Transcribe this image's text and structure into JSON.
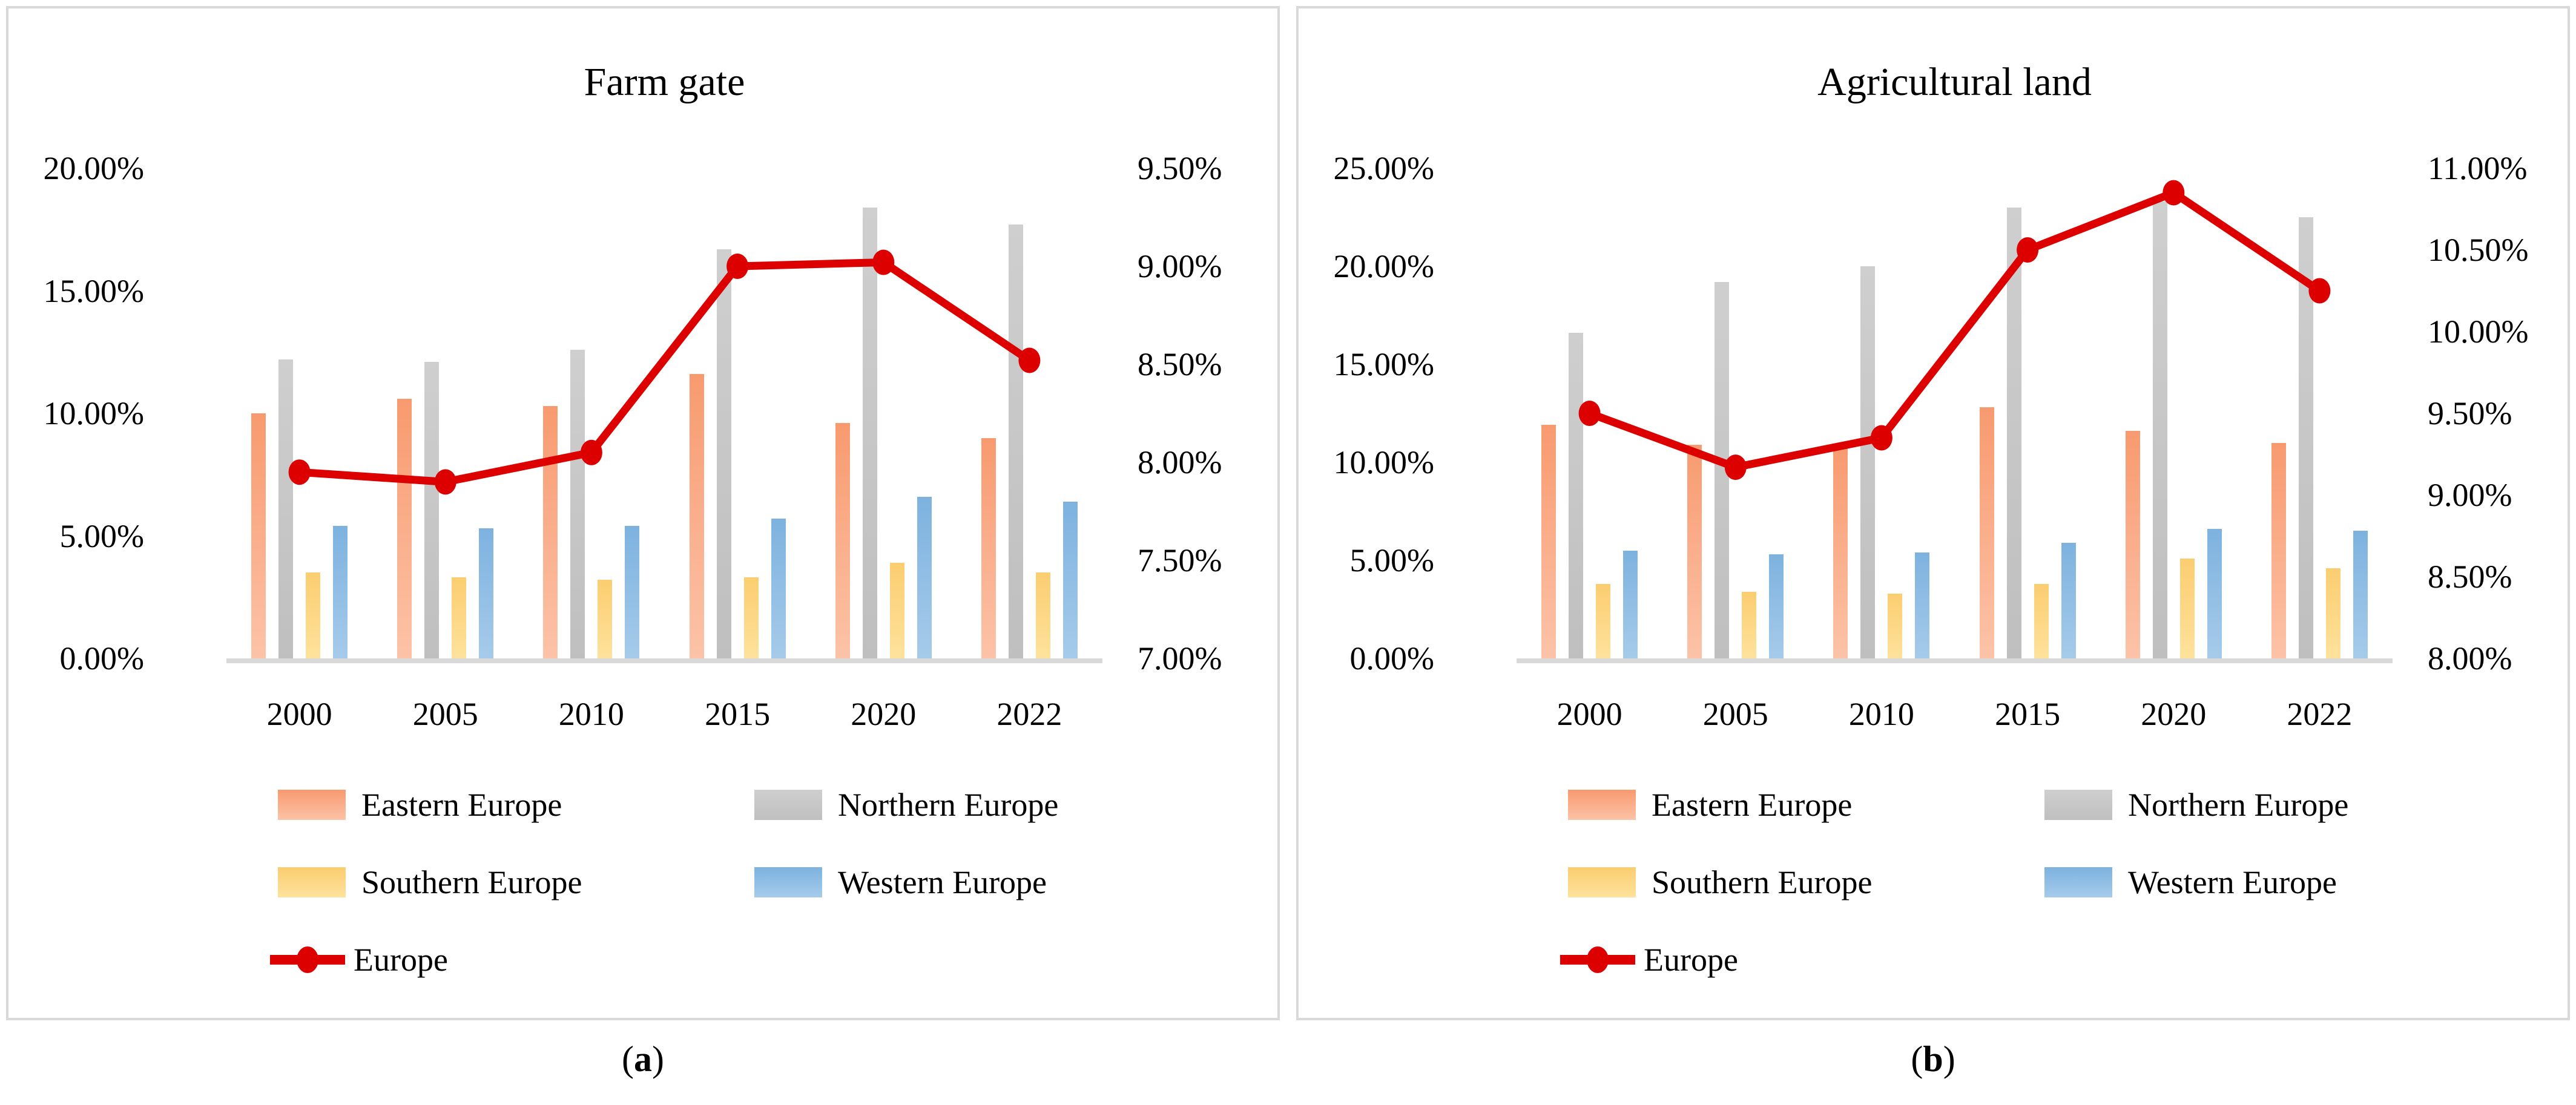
{
  "figure": {
    "caption_open": "(",
    "caption_close": ")",
    "panels": [
      {
        "caption_letter": "a"
      },
      {
        "caption_letter": "b"
      }
    ]
  },
  "colors": {
    "axis_line": "#D9D9D9",
    "panel_border": "#D9D9D9",
    "text": "#000000",
    "europe_line": "#DC0000"
  },
  "chart_data": [
    {
      "type": "bar+line combo",
      "title": "Farm gate",
      "categories": [
        "2000",
        "2005",
        "2010",
        "2015",
        "2020",
        "2022"
      ],
      "series": [
        {
          "name": "Eastern Europe",
          "type": "bar",
          "axis": "left",
          "color_top": "#F89A6F",
          "color_bottom": "#FCC3A8",
          "values": [
            10.0,
            10.6,
            10.3,
            11.6,
            9.6,
            9.0
          ]
        },
        {
          "name": "Northern Europe",
          "type": "bar",
          "axis": "left",
          "color_top": "#CFCFCF",
          "color_bottom": "#BFBFBF",
          "values": [
            12.2,
            12.1,
            12.6,
            16.7,
            18.4,
            17.7
          ]
        },
        {
          "name": "Southern Europe",
          "type": "bar",
          "axis": "left",
          "color_top": "#FBCD70",
          "color_bottom": "#FEE29C",
          "values": [
            3.5,
            3.3,
            3.2,
            3.3,
            3.9,
            3.5
          ]
        },
        {
          "name": "Western Europe",
          "type": "bar",
          "axis": "left",
          "color_top": "#7DB2DF",
          "color_bottom": "#A6CBEA",
          "values": [
            5.4,
            5.3,
            5.4,
            5.7,
            6.6,
            6.4
          ]
        },
        {
          "name": "Europe",
          "type": "line",
          "axis": "right",
          "color": "#DC0000",
          "values": [
            7.95,
            7.9,
            8.05,
            9.0,
            9.02,
            8.52
          ]
        }
      ],
      "left_axis": {
        "min": 0,
        "max": 20,
        "tick_labels_top_to_bottom": [
          "20.00%",
          "15.00%",
          "10.00%",
          "5.00%",
          "0.00%"
        ]
      },
      "right_axis": {
        "min": 7,
        "max": 9.5,
        "tick_labels_top_to_bottom": [
          "9.50%",
          "9.00%",
          "8.50%",
          "8.00%",
          "7.50%",
          "7.00%"
        ]
      },
      "legend_position": "bottom",
      "gridlines": false
    },
    {
      "type": "bar+line combo",
      "title": "Agricultural land",
      "categories": [
        "2000",
        "2005",
        "2010",
        "2015",
        "2020",
        "2022"
      ],
      "series": [
        {
          "name": "Eastern Europe",
          "type": "bar",
          "axis": "left",
          "color_top": "#F89A6F",
          "color_bottom": "#FCC3A8",
          "values": [
            11.9,
            10.9,
            10.8,
            12.8,
            11.6,
            11.0
          ]
        },
        {
          "name": "Northern Europe",
          "type": "bar",
          "axis": "left",
          "color_top": "#CFCFCF",
          "color_bottom": "#BFBFBF",
          "values": [
            16.6,
            19.2,
            20.0,
            23.0,
            23.3,
            22.5
          ]
        },
        {
          "name": "Southern Europe",
          "type": "bar",
          "axis": "left",
          "color_top": "#FBCD70",
          "color_bottom": "#FEE29C",
          "values": [
            3.8,
            3.4,
            3.3,
            3.8,
            5.1,
            4.6
          ]
        },
        {
          "name": "Western Europe",
          "type": "bar",
          "axis": "left",
          "color_top": "#7DB2DF",
          "color_bottom": "#A6CBEA",
          "values": [
            5.5,
            5.3,
            5.4,
            5.9,
            6.6,
            6.5
          ]
        },
        {
          "name": "Europe",
          "type": "line",
          "axis": "right",
          "color": "#DC0000",
          "values": [
            9.5,
            9.17,
            9.35,
            10.5,
            10.85,
            10.25
          ]
        }
      ],
      "left_axis": {
        "min": 0,
        "max": 25,
        "tick_labels_top_to_bottom": [
          "25.00%",
          "20.00%",
          "15.00%",
          "10.00%",
          "5.00%",
          "0.00%"
        ]
      },
      "right_axis": {
        "min": 8,
        "max": 11,
        "tick_labels_top_to_bottom": [
          "11.00%",
          "10.50%",
          "10.00%",
          "9.50%",
          "9.00%",
          "8.50%",
          "8.00%"
        ]
      },
      "legend_position": "bottom",
      "gridlines": false
    }
  ]
}
